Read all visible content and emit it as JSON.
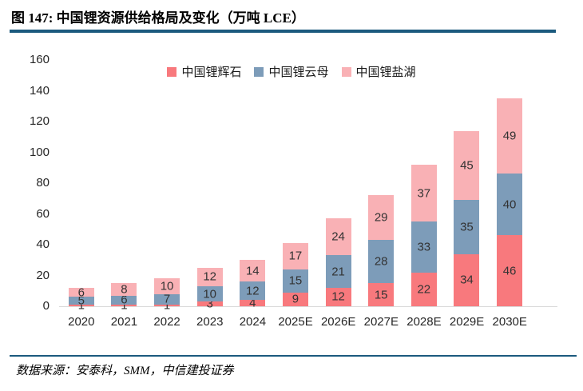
{
  "header": {
    "title": "图 147:  中国锂资源供给格局及变化（万吨 LCE）"
  },
  "footer": {
    "source": "数据来源：安泰科，SMM，中信建投证券"
  },
  "colors": {
    "rule": "#1B5A7E",
    "spodumene": "#F8797D",
    "lepidolite": "#7D9CB9",
    "salt_lake": "#F9B1B5",
    "axis_line": "#D9D9D9",
    "label_text": "#333333"
  },
  "chart_data": {
    "type": "bar",
    "stacked": true,
    "title": "中国锂资源供给格局及变化（万吨 LCE）",
    "xlabel": "",
    "ylabel": "",
    "categories": [
      "2020",
      "2021",
      "2022",
      "2023",
      "2024",
      "2025E",
      "2026E",
      "2027E",
      "2028E",
      "2029E",
      "2030E"
    ],
    "series": [
      {
        "name": "中国锂辉石",
        "color": "#F8797D",
        "values": [
          1,
          1,
          1,
          3,
          4,
          9,
          12,
          15,
          22,
          34,
          46
        ]
      },
      {
        "name": "中国锂云母",
        "color": "#7D9CB9",
        "values": [
          5,
          6,
          7,
          10,
          12,
          15,
          21,
          28,
          33,
          35,
          40
        ]
      },
      {
        "name": "中国锂盐湖",
        "color": "#F9B1B5",
        "values": [
          6,
          8,
          10,
          12,
          14,
          17,
          24,
          29,
          37,
          45,
          49
        ]
      }
    ],
    "totals": [
      12,
      15,
      18,
      25,
      30,
      41,
      57,
      72,
      92,
      114,
      135
    ],
    "ylim": [
      0,
      160
    ],
    "yticks": [
      0,
      20,
      40,
      60,
      80,
      100,
      120,
      140,
      160
    ],
    "grid": false,
    "data_labels": true,
    "legend_position": "top-center"
  }
}
